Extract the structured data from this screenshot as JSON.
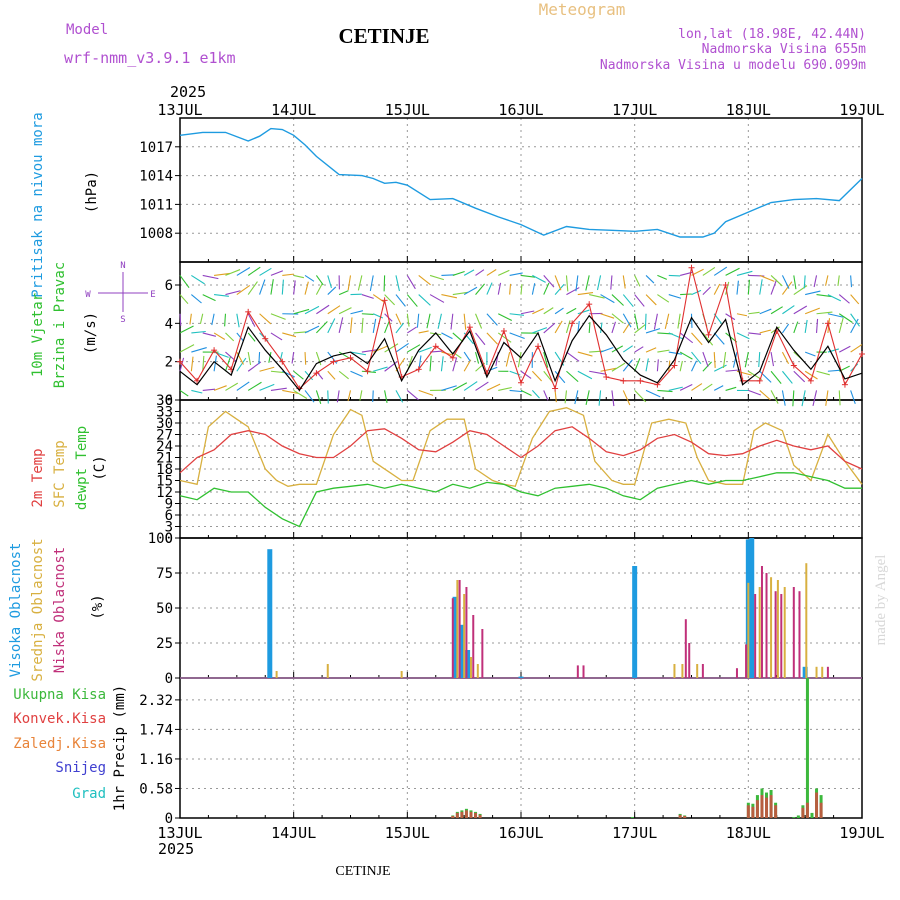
{
  "header": {
    "model_label": "Model",
    "model_name": "wrf-nmm_v3.9.1 e1km",
    "station": "CETINJE",
    "product": "Meteogram",
    "coords": "lon,lat (18.98E, 42.44N)",
    "elevation": "Nadmorska Visina 655m",
    "model_elevation": "Nadmorska Visina u modelu 690.099m",
    "footer_station": "CETINJE",
    "watermark": "made by Angel"
  },
  "time_axis": {
    "year": "2025",
    "labels": [
      "13JUL",
      "14JUL",
      "15JUL",
      "16JUL",
      "17JUL",
      "18JUL",
      "19JUL"
    ]
  },
  "colors": {
    "pressure": "#1e9be0",
    "temp2m": "#e04040",
    "sfc": "#d8b040",
    "dewpoint": "#30c030",
    "high_cloud": "#1e9be0",
    "mid_cloud": "#d8b040",
    "low_cloud": "#c0307a",
    "total_precip": "#3cb83c",
    "conv_precip": "#e04040",
    "grid_precip": "#e8843a",
    "snow": "#4040d0",
    "hail": "#20c0c0",
    "wind_line": "#000000",
    "gust": "#e03030",
    "compass": "#9040c0"
  },
  "chart_data": [
    {
      "type": "line",
      "panel": "pressure",
      "ylabel": [
        "Pritisak na nivou mora",
        "(hPa)"
      ],
      "yticks": [
        1008,
        1011,
        1014,
        1017
      ],
      "ylim": [
        1005,
        1020
      ],
      "grid": true,
      "series": [
        {
          "name": "Pritisak na nivou mora",
          "x": [
            0,
            0.2,
            0.4,
            0.6,
            0.7,
            0.8,
            0.9,
            1.0,
            1.1,
            1.2,
            1.4,
            1.6,
            1.7,
            1.8,
            1.9,
            2.0,
            2.2,
            2.4,
            2.6,
            2.8,
            3.0,
            3.2,
            3.4,
            3.6,
            3.8,
            4.0,
            4.2,
            4.4,
            4.6,
            4.7,
            4.8,
            5.0,
            5.2,
            5.4,
            5.6,
            5.8,
            6.0
          ],
          "values": [
            1018.2,
            1018.5,
            1018.5,
            1017.6,
            1018.1,
            1018.9,
            1018.8,
            1018.2,
            1017.2,
            1016.0,
            1014.1,
            1014.0,
            1013.7,
            1013.2,
            1013.3,
            1013.0,
            1011.5,
            1011.6,
            1010.6,
            1009.7,
            1008.9,
            1007.8,
            1008.7,
            1008.4,
            1008.3,
            1008.2,
            1008.4,
            1007.6,
            1007.6,
            1008.0,
            1009.2,
            1010.2,
            1011.2,
            1011.5,
            1011.6,
            1011.4,
            1013.7
          ]
        }
      ]
    },
    {
      "type": "line",
      "panel": "wind",
      "ylabel": [
        "10m Vjetar",
        "Brzina i Pravac",
        "(m/s)"
      ],
      "compass": {
        "north": "N",
        "south": "S",
        "east": "E",
        "west": "W"
      },
      "yticks": [
        0,
        2,
        4,
        6
      ],
      "ylim": [
        0,
        7.2
      ],
      "grid": true,
      "series": [
        {
          "name": "wind speed",
          "x": [
            0,
            0.15,
            0.3,
            0.45,
            0.6,
            0.75,
            0.9,
            1.05,
            1.2,
            1.35,
            1.5,
            1.65,
            1.8,
            1.95,
            2.1,
            2.25,
            2.4,
            2.55,
            2.7,
            2.85,
            3.0,
            3.15,
            3.3,
            3.45,
            3.6,
            3.75,
            3.9,
            4.05,
            4.2,
            4.35,
            4.5,
            4.65,
            4.8,
            4.95,
            5.1,
            5.25,
            5.4,
            5.55,
            5.7,
            5.85,
            6.0
          ],
          "values": [
            1.5,
            0.8,
            2.0,
            1.3,
            3.8,
            2.6,
            1.6,
            0.5,
            1.9,
            2.3,
            2.5,
            1.9,
            3.2,
            1.0,
            2.6,
            3.5,
            2.4,
            3.6,
            1.2,
            3.0,
            2.2,
            3.5,
            1.0,
            3.1,
            4.4,
            3.4,
            2.1,
            1.3,
            0.9,
            2.1,
            4.3,
            3.0,
            4.2,
            0.8,
            1.5,
            3.8,
            2.6,
            1.6,
            2.8,
            1.1,
            1.4
          ]
        },
        {
          "name": "gusts",
          "x": [
            0,
            0.15,
            0.3,
            0.45,
            0.6,
            0.75,
            0.9,
            1.05,
            1.2,
            1.35,
            1.5,
            1.65,
            1.8,
            1.95,
            2.1,
            2.25,
            2.4,
            2.55,
            2.7,
            2.85,
            3.0,
            3.15,
            3.3,
            3.45,
            3.6,
            3.75,
            3.9,
            4.05,
            4.2,
            4.35,
            4.5,
            4.65,
            4.8,
            4.95,
            5.1,
            5.25,
            5.4,
            5.55,
            5.7,
            5.85,
            6.0
          ],
          "values": [
            2.0,
            1.0,
            2.6,
            1.6,
            4.6,
            3.2,
            2.0,
            0.6,
            1.4,
            2.0,
            2.2,
            1.5,
            5.2,
            1.2,
            1.6,
            2.8,
            2.2,
            3.8,
            1.4,
            3.6,
            0.9,
            2.8,
            0.6,
            4.0,
            5.0,
            1.2,
            1.0,
            1.0,
            0.8,
            1.8,
            6.9,
            3.4,
            6.0,
            1.0,
            1.0,
            3.6,
            1.8,
            1.0,
            4.0,
            0.8,
            2.4
          ]
        }
      ]
    },
    {
      "type": "line",
      "panel": "temperature",
      "ylabel": [
        "2m Temp",
        "SFC Temp",
        "dewpt Temp",
        "(C)"
      ],
      "yticks": [
        0,
        3,
        6,
        9,
        12,
        15,
        18,
        21,
        24,
        27,
        30,
        33,
        36
      ],
      "ylim": [
        0,
        36
      ],
      "grid": true,
      "series": [
        {
          "name": "2m Temp",
          "x": [
            0,
            0.15,
            0.3,
            0.45,
            0.6,
            0.75,
            0.9,
            1.05,
            1.2,
            1.35,
            1.5,
            1.65,
            1.8,
            1.95,
            2.1,
            2.25,
            2.4,
            2.55,
            2.7,
            2.85,
            3.0,
            3.15,
            3.3,
            3.45,
            3.6,
            3.75,
            3.9,
            4.05,
            4.2,
            4.35,
            4.5,
            4.65,
            4.8,
            4.95,
            5.1,
            5.25,
            5.4,
            5.55,
            5.7,
            5.85,
            6.0
          ],
          "values": [
            17,
            21,
            23,
            27,
            28,
            27,
            24,
            22,
            21,
            21,
            24,
            28,
            28.5,
            26,
            23,
            22.5,
            25,
            28,
            27,
            24,
            21,
            24,
            28,
            29,
            26,
            22.5,
            21.5,
            23,
            26,
            27,
            25,
            22,
            21.5,
            22,
            24,
            25.5,
            24,
            23,
            24,
            20,
            18
          ]
        },
        {
          "name": "SFC Temp",
          "x": [
            0,
            0.15,
            0.25,
            0.4,
            0.5,
            0.6,
            0.75,
            0.85,
            0.95,
            1.05,
            1.2,
            1.35,
            1.5,
            1.6,
            1.7,
            1.85,
            1.95,
            2.05,
            2.2,
            2.35,
            2.5,
            2.6,
            2.75,
            2.85,
            2.95,
            3.1,
            3.25,
            3.4,
            3.55,
            3.65,
            3.8,
            3.9,
            4.0,
            4.15,
            4.3,
            4.45,
            4.55,
            4.65,
            4.8,
            4.95,
            5.05,
            5.15,
            5.3,
            5.4,
            5.55,
            5.7,
            5.85,
            6.0
          ],
          "values": [
            15,
            14,
            29,
            33,
            31,
            29,
            18,
            15,
            13.5,
            14,
            14,
            27,
            33.5,
            32,
            20,
            17,
            15,
            15,
            28,
            31,
            31,
            18,
            15,
            14,
            13.5,
            26,
            33,
            34,
            32,
            20,
            15,
            14,
            14,
            30,
            31,
            30,
            21,
            15,
            14,
            14,
            28,
            30,
            28,
            19,
            15,
            27,
            20,
            14
          ]
        },
        {
          "name": "dewpt Temp",
          "x": [
            0,
            0.15,
            0.3,
            0.45,
            0.6,
            0.75,
            0.9,
            1.05,
            1.2,
            1.35,
            1.5,
            1.65,
            1.8,
            1.95,
            2.1,
            2.25,
            2.4,
            2.55,
            2.7,
            2.85,
            3.0,
            3.15,
            3.3,
            3.45,
            3.6,
            3.75,
            3.9,
            4.05,
            4.2,
            4.35,
            4.5,
            4.65,
            4.8,
            4.95,
            5.1,
            5.25,
            5.4,
            5.55,
            5.7,
            5.85,
            6.0
          ],
          "values": [
            11,
            10,
            13,
            12,
            12,
            8,
            5,
            3,
            12,
            13,
            13.5,
            14,
            13,
            14,
            13,
            12,
            14,
            13,
            14.5,
            14,
            12,
            11,
            13,
            13.5,
            14,
            13,
            11,
            10,
            13,
            14,
            15,
            14,
            15,
            15,
            16,
            17,
            17,
            16,
            15,
            13,
            13
          ]
        }
      ]
    },
    {
      "type": "bar",
      "panel": "clouds",
      "ylabel": [
        "Visoka Oblacnost",
        "Srednja Oblacnost",
        "Niska Oblacnost",
        "(%)"
      ],
      "yticks": [
        0,
        25,
        50,
        75,
        100
      ],
      "ylim": [
        0,
        100
      ],
      "grid": true,
      "series": [
        {
          "name": "Visoka Oblacnost",
          "x": [
            0.79,
            2.42,
            2.48,
            2.53,
            3.0,
            4.0,
            5.0,
            5.03,
            5.5
          ],
          "values": [
            92,
            58,
            38,
            20,
            1,
            80,
            99,
            100,
            8
          ]
        },
        {
          "name": "Srednja Oblacnost",
          "x": [
            0.85,
            1.3,
            1.95,
            2.44,
            2.5,
            2.56,
            2.62,
            4.35,
            4.42,
            4.55,
            5.0,
            5.1,
            5.2,
            5.26,
            5.32,
            5.51,
            5.6,
            5.65
          ],
          "values": [
            5,
            10,
            5,
            70,
            60,
            15,
            10,
            10,
            10,
            10,
            68,
            65,
            72,
            70,
            65,
            82,
            8,
            8
          ]
        },
        {
          "name": "Niska Oblacnost",
          "x": [
            2.4,
            2.46,
            2.52,
            2.58,
            2.66,
            3.5,
            3.55,
            4.45,
            4.48,
            4.6,
            4.9,
            4.98,
            5.06,
            5.12,
            5.16,
            5.24,
            5.29,
            5.4,
            5.45,
            5.7
          ],
          "values": [
            57,
            70,
            65,
            45,
            35,
            9,
            9,
            42,
            25,
            10,
            7,
            24,
            60,
            80,
            75,
            62,
            60,
            65,
            62,
            8
          ]
        }
      ]
    },
    {
      "type": "bar",
      "panel": "precip",
      "ylabel": [
        "1hr Precip (mm)"
      ],
      "legend": [
        "Ukupna Kisa",
        "Konvek.Kisa",
        "Zaledj.Kisa",
        "Snijeg",
        "Grad"
      ],
      "yticks": [
        0,
        0.58,
        1.16,
        1.74,
        2.32
      ],
      "ylim": [
        0,
        2.75
      ],
      "grid": true,
      "series": [
        {
          "name": "Ukupna Kisa",
          "x": [
            2.4,
            2.44,
            2.48,
            2.52,
            2.56,
            2.6,
            2.64,
            3.98,
            4.4,
            4.44,
            5.0,
            5.04,
            5.08,
            5.12,
            5.16,
            5.2,
            5.24,
            5.4,
            5.44,
            5.48,
            5.52,
            5.56,
            5.6,
            5.64
          ],
          "values": [
            0.05,
            0.12,
            0.15,
            0.18,
            0.15,
            0.12,
            0.08,
            0.02,
            0.08,
            0.05,
            0.3,
            0.28,
            0.45,
            0.58,
            0.5,
            0.55,
            0.3,
            0.02,
            0.05,
            0.25,
            2.75,
            0.1,
            0.58,
            0.45
          ]
        },
        {
          "name": "Konvek.Kisa",
          "x": [
            2.4,
            2.44,
            2.48,
            2.52,
            2.56,
            2.6,
            2.64,
            4.4,
            4.44,
            5.0,
            5.04,
            5.08,
            5.12,
            5.16,
            5.2,
            5.24,
            5.48,
            5.52,
            5.6,
            5.64
          ],
          "values": [
            0.04,
            0.1,
            0.12,
            0.15,
            0.12,
            0.1,
            0.06,
            0.06,
            0.04,
            0.25,
            0.22,
            0.35,
            0.45,
            0.4,
            0.45,
            0.25,
            0.2,
            0.3,
            0.5,
            0.3
          ]
        }
      ]
    }
  ]
}
